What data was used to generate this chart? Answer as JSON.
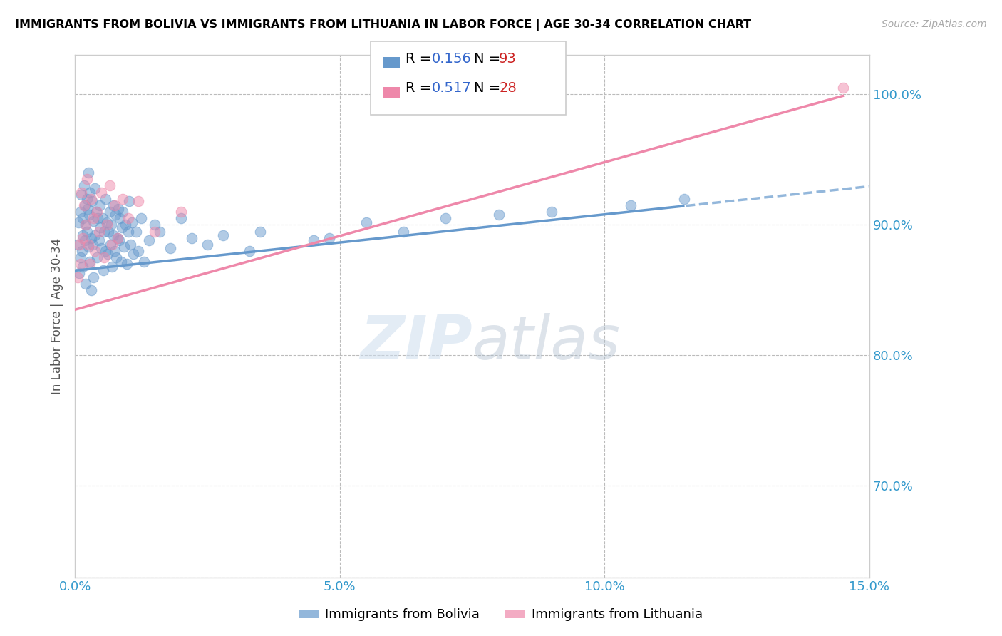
{
  "title": "IMMIGRANTS FROM BOLIVIA VS IMMIGRANTS FROM LITHUANIA IN LABOR FORCE | AGE 30-34 CORRELATION CHART",
  "source": "Source: ZipAtlas.com",
  "ylabel": "In Labor Force | Age 30-34",
  "xlim": [
    0.0,
    15.0
  ],
  "ylim": [
    63.0,
    103.0
  ],
  "xticks": [
    0.0,
    5.0,
    10.0,
    15.0
  ],
  "xticklabels": [
    "0.0%",
    "5.0%",
    "10.0%",
    "15.0%"
  ],
  "yticks": [
    70.0,
    80.0,
    90.0,
    100.0
  ],
  "yticklabels": [
    "70.0%",
    "80.0%",
    "90.0%",
    "100.0%"
  ],
  "bolivia_color": "#6699cc",
  "lithuania_color": "#ee88aa",
  "bolivia_R": 0.156,
  "bolivia_N": 93,
  "lithuania_R": 0.517,
  "lithuania_N": 28,
  "R_color": "#3366cc",
  "N_color": "#cc2222",
  "watermark_zip": "ZIP",
  "watermark_atlas": "atlas",
  "bolivia_x": [
    0.05,
    0.07,
    0.08,
    0.1,
    0.1,
    0.12,
    0.13,
    0.14,
    0.15,
    0.15,
    0.17,
    0.18,
    0.19,
    0.2,
    0.2,
    0.22,
    0.23,
    0.24,
    0.25,
    0.25,
    0.27,
    0.28,
    0.28,
    0.3,
    0.3,
    0.32,
    0.33,
    0.35,
    0.35,
    0.37,
    0.38,
    0.4,
    0.42,
    0.43,
    0.45,
    0.47,
    0.48,
    0.5,
    0.52,
    0.53,
    0.55,
    0.57,
    0.58,
    0.6,
    0.62,
    0.63,
    0.65,
    0.67,
    0.68,
    0.7,
    0.72,
    0.73,
    0.75,
    0.77,
    0.78,
    0.8,
    0.82,
    0.83,
    0.85,
    0.87,
    0.88,
    0.9,
    0.92,
    0.95,
    0.98,
    1.0,
    1.02,
    1.05,
    1.08,
    1.1,
    1.15,
    1.2,
    1.25,
    1.3,
    1.4,
    1.5,
    1.6,
    1.8,
    2.0,
    2.2,
    2.5,
    2.8,
    3.3,
    3.5,
    4.5,
    4.8,
    5.5,
    6.2,
    7.0,
    8.0,
    9.0,
    10.5,
    11.5
  ],
  "bolivia_y": [
    88.5,
    90.2,
    86.3,
    91.0,
    87.5,
    92.3,
    88.0,
    90.5,
    89.2,
    86.8,
    93.0,
    91.5,
    88.8,
    90.0,
    85.5,
    92.0,
    89.5,
    91.2,
    88.3,
    94.0,
    90.8,
    87.2,
    92.5,
    89.0,
    85.0,
    91.8,
    88.5,
    90.3,
    86.0,
    92.8,
    89.2,
    91.0,
    87.5,
    90.5,
    88.8,
    91.5,
    89.8,
    88.2,
    90.5,
    86.5,
    89.5,
    88.0,
    92.0,
    90.2,
    87.8,
    89.5,
    91.0,
    88.5,
    90.0,
    86.8,
    89.2,
    91.5,
    88.0,
    90.8,
    87.5,
    89.0,
    91.2,
    88.8,
    90.5,
    87.2,
    89.8,
    91.0,
    88.3,
    90.0,
    87.0,
    89.5,
    91.8,
    88.5,
    90.2,
    87.8,
    89.5,
    88.0,
    90.5,
    87.2,
    88.8,
    90.0,
    89.5,
    88.2,
    90.5,
    89.0,
    88.5,
    89.2,
    88.0,
    89.5,
    88.8,
    89.0,
    90.2,
    89.5,
    90.5,
    90.8,
    91.0,
    91.5,
    92.0
  ],
  "lithuania_x": [
    0.05,
    0.08,
    0.1,
    0.12,
    0.15,
    0.17,
    0.2,
    0.22,
    0.25,
    0.28,
    0.3,
    0.35,
    0.38,
    0.42,
    0.45,
    0.5,
    0.55,
    0.6,
    0.65,
    0.7,
    0.75,
    0.8,
    0.9,
    1.0,
    1.2,
    1.5,
    2.0,
    14.5
  ],
  "lithuania_y": [
    86.0,
    88.5,
    87.0,
    92.5,
    89.0,
    91.5,
    90.0,
    93.5,
    88.5,
    87.0,
    92.0,
    90.5,
    88.0,
    91.0,
    89.5,
    92.5,
    87.5,
    90.0,
    93.0,
    88.5,
    91.5,
    89.0,
    92.0,
    90.5,
    91.8,
    89.5,
    91.0,
    100.5
  ]
}
